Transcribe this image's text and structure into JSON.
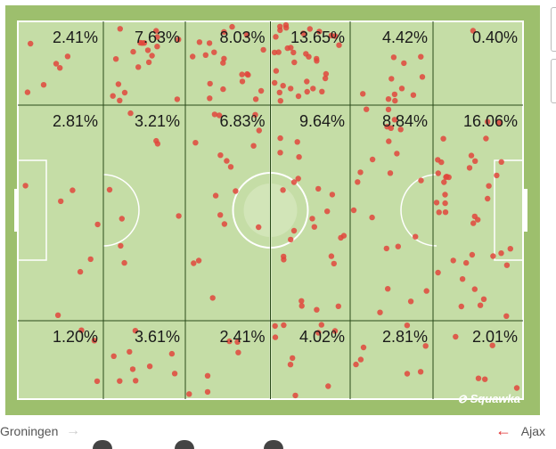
{
  "zones": [
    [
      "2.41%",
      "7.63%",
      "8.03%",
      "13.65%",
      "4.42%",
      "0.40%"
    ],
    [
      "2.81%",
      "3.21%",
      "6.83%",
      "9.64%",
      "8.84%",
      "16.06%"
    ],
    [
      "1.20%",
      "3.61%",
      "2.41%",
      "4.02%",
      "2.81%",
      "2.01%"
    ]
  ],
  "teams": {
    "left": "Groningen",
    "right": "Ajax"
  },
  "watermark": "Squawka",
  "colors": {
    "outer": "#9dbf6d",
    "pitch": "#c5dda6",
    "line_dark": "#2a4a1a",
    "dot": "#e0463c"
  },
  "icons": {
    "left_arrow": "arrow-right-icon",
    "right_arrow": "arrow-left-icon",
    "logo": "squawka-logo-icon"
  }
}
